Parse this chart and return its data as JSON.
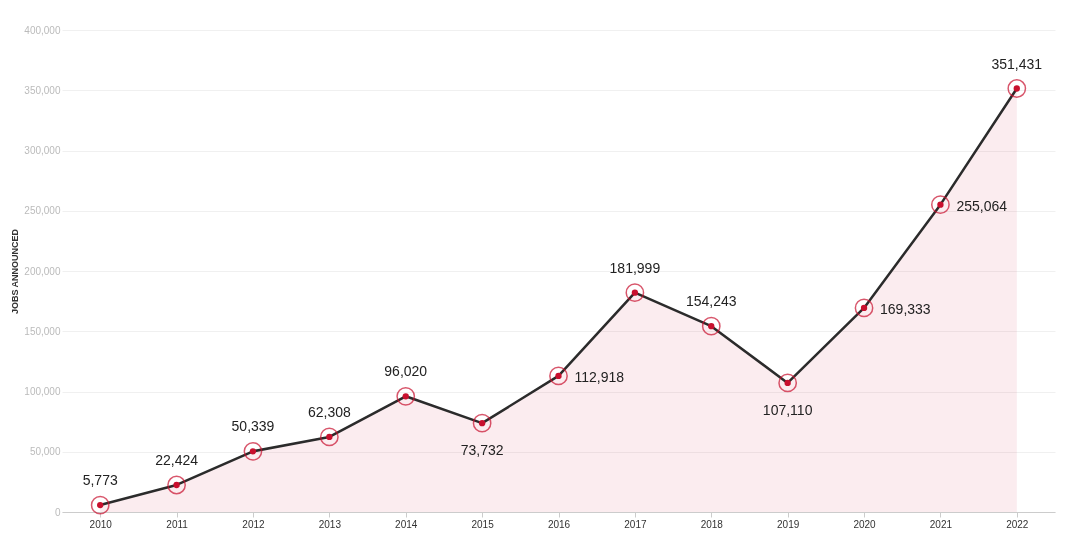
{
  "chart_data": {
    "type": "area",
    "ylabel": "JOBS ANNOUNCED",
    "categories": [
      "2010",
      "2011",
      "2012",
      "2013",
      "2014",
      "2015",
      "2016",
      "2017",
      "2018",
      "2019",
      "2020",
      "2021",
      "2022"
    ],
    "series": [
      {
        "color": "#c8102e",
        "values": [
          5773,
          22424,
          50339,
          62308,
          96020,
          73732,
          112918,
          181999,
          154243,
          107110,
          169333,
          255064,
          351431
        ],
        "value_labels": [
          "5,773",
          "22,424",
          "50,339",
          "62,308",
          "96,020",
          "73,732",
          "112,918",
          "181,999",
          "154,243",
          "107,110",
          "169,333",
          "255,064",
          "351,431"
        ]
      }
    ],
    "ylim": [
      0,
      400000
    ],
    "yticks": [
      {
        "value": 0,
        "label": "0"
      },
      {
        "value": 50000,
        "label": "50,000"
      },
      {
        "value": 100000,
        "label": "100,000"
      },
      {
        "value": 150000,
        "label": "150,000"
      },
      {
        "value": 200000,
        "label": "200,000"
      },
      {
        "value": 250000,
        "label": "250,000"
      },
      {
        "value": 300000,
        "label": "300,000"
      },
      {
        "value": 350000,
        "label": "350,000"
      },
      {
        "value": 400000,
        "label": "400,000"
      }
    ],
    "grid": "y",
    "marker": "circle"
  }
}
